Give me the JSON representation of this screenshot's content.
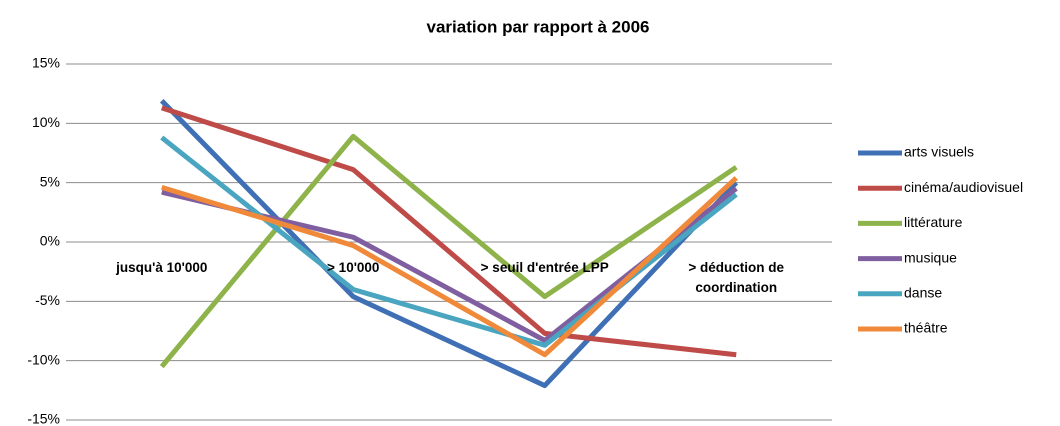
{
  "chart_data": {
    "type": "line",
    "title": "variation par rapport à 2006",
    "categories": [
      "jusqu'à 10'000",
      "> 10'000",
      "> seuil d'entrée LPP",
      "> déduction de coordination"
    ],
    "series": [
      {
        "name": "arts visuels",
        "color": "#3f6fb5",
        "values": [
          11.9,
          -4.6,
          -12.1,
          5.0
        ]
      },
      {
        "name": "cinéma/audiovisuel",
        "color": "#be4b48",
        "values": [
          11.3,
          6.1,
          -7.7,
          -9.5
        ]
      },
      {
        "name": "littérature",
        "color": "#8eb34a",
        "values": [
          -10.5,
          8.9,
          -4.6,
          6.3
        ]
      },
      {
        "name": "musique",
        "color": "#7f5fa0",
        "values": [
          4.2,
          0.4,
          -8.3,
          4.5
        ]
      },
      {
        "name": "danse",
        "color": "#4aa5c0",
        "values": [
          8.8,
          -4.0,
          -8.7,
          4.0
        ]
      },
      {
        "name": "théâtre",
        "color": "#f08a3a",
        "values": [
          4.6,
          -0.3,
          -9.5,
          5.4
        ]
      }
    ],
    "ylim": [
      -15,
      15
    ],
    "yticks": [
      {
        "value": -15,
        "label": "-15%"
      },
      {
        "value": -10,
        "label": "-10%"
      },
      {
        "value": -5,
        "label": "-5%"
      },
      {
        "value": 0,
        "label": "0%"
      },
      {
        "value": 5,
        "label": "5%"
      },
      {
        "value": 10,
        "label": "10%"
      },
      {
        "value": 15,
        "label": "15%"
      }
    ],
    "grid": true,
    "legend": "right"
  }
}
